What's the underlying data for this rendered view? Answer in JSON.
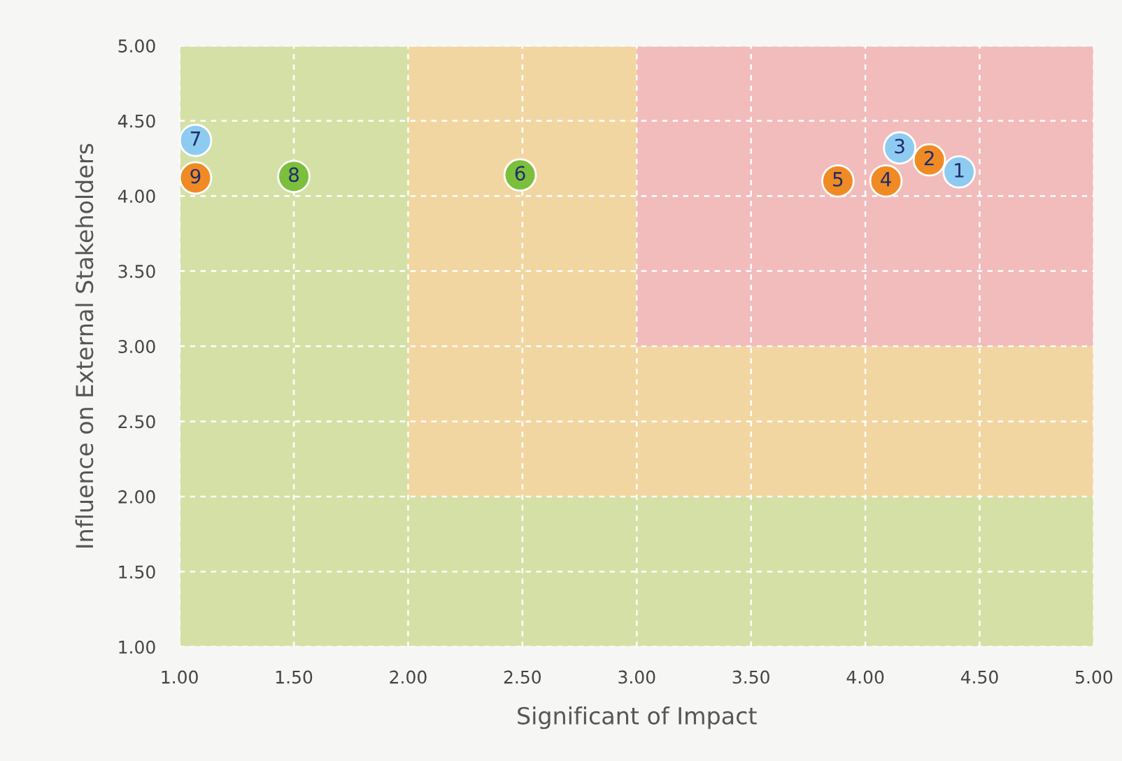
{
  "chart_data": {
    "type": "scatter",
    "xlabel": "Significant of Impact",
    "ylabel": "Influence on External Stakeholders",
    "xlim": [
      1.0,
      5.0
    ],
    "ylim": [
      1.0,
      5.0
    ],
    "xticks": [
      {
        "value": 1.0,
        "label": "1.00"
      },
      {
        "value": 1.5,
        "label": "1.50"
      },
      {
        "value": 2.0,
        "label": "2.00"
      },
      {
        "value": 2.5,
        "label": "2.50"
      },
      {
        "value": 3.0,
        "label": "3.00"
      },
      {
        "value": 3.5,
        "label": "3.50"
      },
      {
        "value": 4.0,
        "label": "4.00"
      },
      {
        "value": 4.5,
        "label": "4.50"
      },
      {
        "value": 5.0,
        "label": "5.00"
      }
    ],
    "yticks": [
      {
        "value": 1.0,
        "label": "1.00"
      },
      {
        "value": 1.5,
        "label": "1.50"
      },
      {
        "value": 2.0,
        "label": "2.00"
      },
      {
        "value": 2.5,
        "label": "2.50"
      },
      {
        "value": 3.0,
        "label": "3.00"
      },
      {
        "value": 3.5,
        "label": "3.50"
      },
      {
        "value": 4.0,
        "label": "4.00"
      },
      {
        "value": 4.5,
        "label": "4.50"
      },
      {
        "value": 5.0,
        "label": "5.00"
      }
    ],
    "grid": true,
    "marker": "circle",
    "legend": false,
    "bands": [
      {
        "axis": "x",
        "from": 1.0,
        "to": 5.0,
        "color": "#d5e0a6"
      },
      {
        "axis": "x",
        "from": 2.0,
        "to": 5.0,
        "color": "#f2d6a2"
      },
      {
        "axis": "x",
        "from": 3.0,
        "to": 5.0,
        "color": "#f2bcbc"
      },
      {
        "axis": "y",
        "from": 1.0,
        "to": 3.0,
        "color": "#f2d6a2"
      },
      {
        "axis": "x",
        "from": 1.0,
        "to": 2.0,
        "color": "#d5e0a6"
      },
      {
        "axis": "y",
        "from": 1.0,
        "to": 2.0,
        "color": "#d5e0a6"
      }
    ],
    "series": [
      {
        "name": "1",
        "color": "#8ecbf0",
        "x": [
          4.41
        ],
        "values": [
          4.16
        ]
      },
      {
        "name": "2",
        "color": "#f08a24",
        "x": [
          4.28
        ],
        "values": [
          4.24
        ]
      },
      {
        "name": "3",
        "color": "#8ecbf0",
        "x": [
          4.15
        ],
        "values": [
          4.32
        ]
      },
      {
        "name": "4",
        "color": "#f08a24",
        "x": [
          4.09
        ],
        "values": [
          4.1
        ]
      },
      {
        "name": "5",
        "color": "#f08a24",
        "x": [
          3.88
        ],
        "values": [
          4.1
        ]
      },
      {
        "name": "6",
        "color": "#7bbf3c",
        "x": [
          2.49
        ],
        "values": [
          4.14
        ]
      },
      {
        "name": "7",
        "color": "#8ecbf0",
        "x": [
          1.07
        ],
        "values": [
          4.37
        ]
      },
      {
        "name": "8",
        "color": "#7bbf3c",
        "x": [
          1.5
        ],
        "values": [
          4.13
        ]
      },
      {
        "name": "9",
        "color": "#f08a24",
        "x": [
          1.07
        ],
        "values": [
          4.12
        ]
      }
    ]
  }
}
